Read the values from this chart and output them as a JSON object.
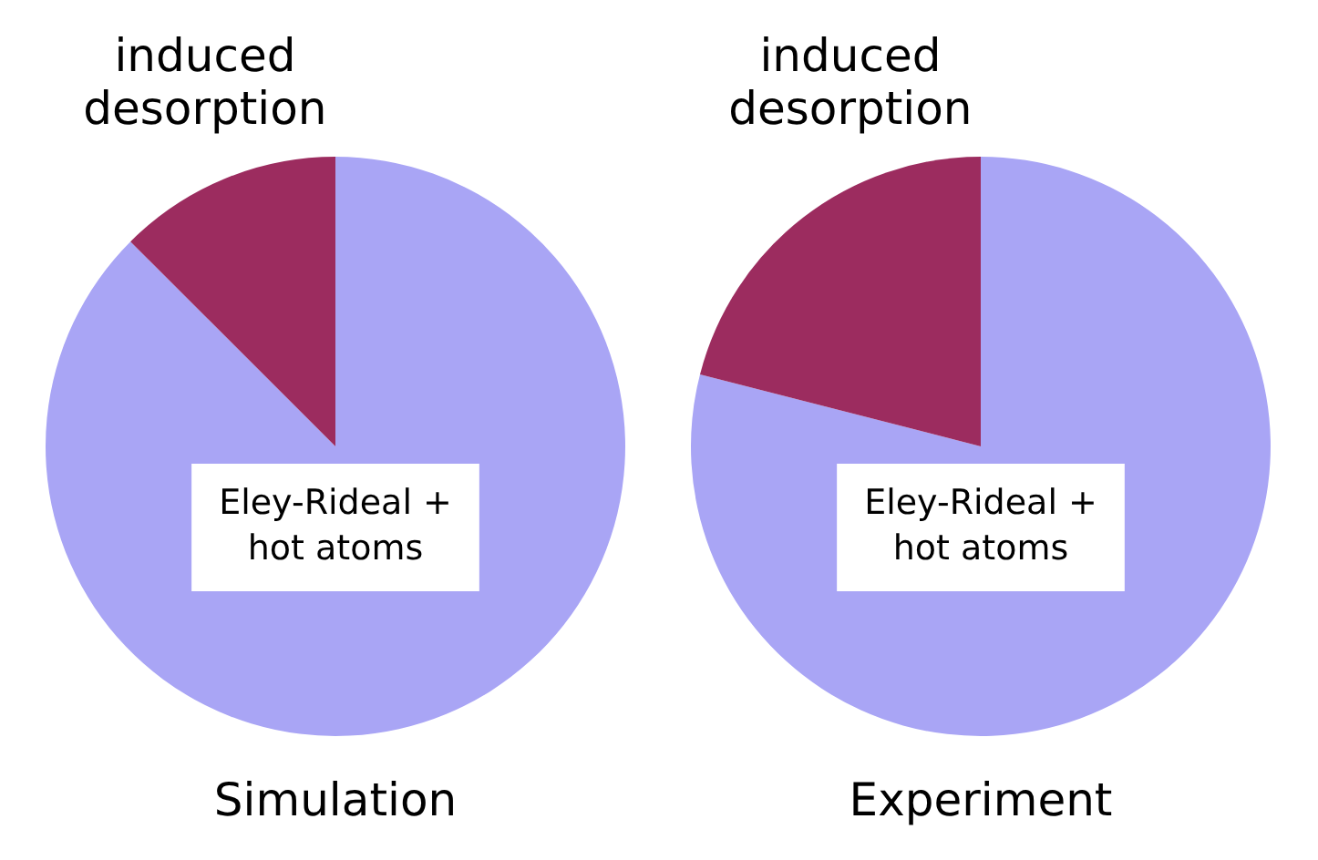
{
  "chart_data": [
    {
      "type": "pie",
      "title": "Simulation",
      "categories": [
        "Eley-Rideal + hot atoms",
        "induced desorption"
      ],
      "values": [
        87.5,
        12.5
      ],
      "colors": [
        "#a9a5f5",
        "#9c2c5f"
      ],
      "legend": false
    },
    {
      "type": "pie",
      "title": "Experiment",
      "categories": [
        "Eley-Rideal + hot atoms",
        "induced desorption"
      ],
      "values": [
        79,
        21
      ],
      "colors": [
        "#a9a5f5",
        "#9c2c5f"
      ],
      "legend": false
    }
  ]
}
